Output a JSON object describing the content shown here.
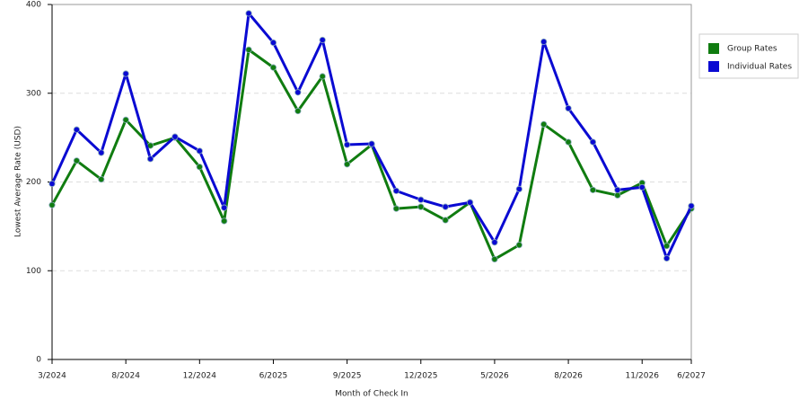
{
  "chart_data": {
    "type": "line",
    "y_label": "Lowest Average Rate (USD)",
    "x_label": "Month of Check In",
    "categories": [
      "3/2024",
      null,
      null,
      "8/2024",
      null,
      null,
      "12/2024",
      null,
      null,
      "6/2025",
      null,
      null,
      "9/2025",
      null,
      null,
      "12/2025",
      null,
      null,
      "5/2026",
      null,
      null,
      "8/2026",
      null,
      null,
      "11/2026",
      null,
      "6/2027"
    ],
    "series": [
      {
        "name": "Group Rates",
        "color": "#107c10",
        "values": [
          174,
          224,
          203,
          270,
          241,
          250,
          217,
          156,
          349,
          329,
          280,
          319,
          220,
          242,
          170,
          172,
          157,
          177,
          113,
          129,
          265,
          245,
          191,
          185,
          199,
          128,
          170
        ]
      },
      {
        "name": "Individual Rates",
        "color": "#0a0ad2",
        "values": [
          198,
          259,
          233,
          322,
          226,
          251,
          235,
          171,
          390,
          357,
          301,
          360,
          242,
          243,
          190,
          180,
          172,
          177,
          132,
          192,
          358,
          283,
          245,
          191,
          194,
          114,
          173
        ]
      }
    ],
    "ylim": [
      0,
      400
    ],
    "yticks": [
      0,
      100,
      200,
      300,
      400
    ],
    "grid": true
  }
}
